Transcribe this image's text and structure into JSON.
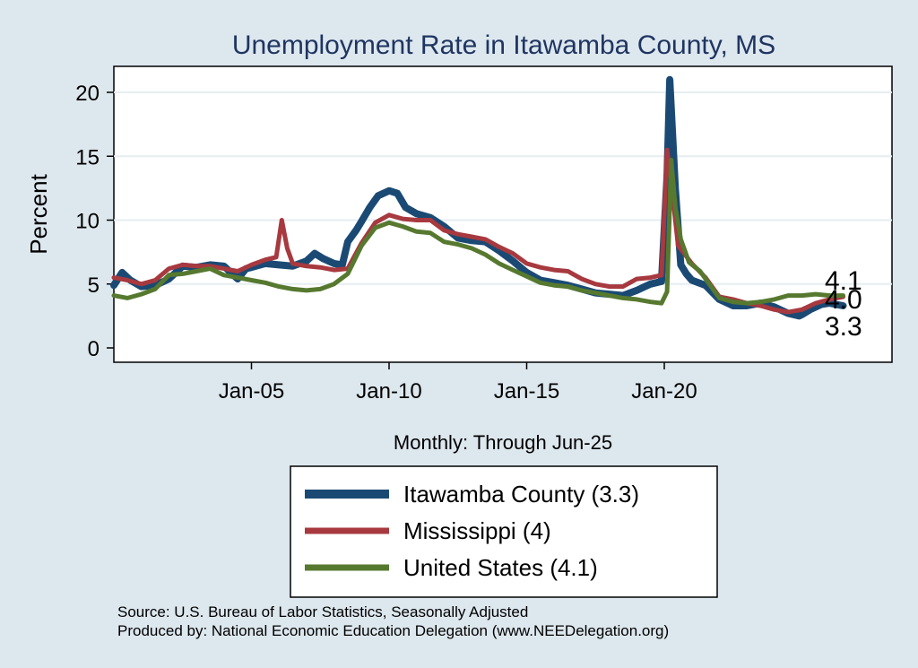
{
  "chart_data": {
    "type": "line",
    "title": "Unemployment Rate in Itawamba  County, MS",
    "ylabel": "Percent",
    "xlabel": "Monthly: Through Jun-25",
    "ylim": [
      0,
      22
    ],
    "yticks": [
      0,
      5,
      10,
      15,
      20
    ],
    "xticks": [
      {
        "label": "Jan-05",
        "value": 2005.0
      },
      {
        "label": "Jan-10",
        "value": 2010.0
      },
      {
        "label": "Jan-15",
        "value": 2015.0
      },
      {
        "label": "Jan-20",
        "value": 2020.0
      }
    ],
    "xlim": [
      2000.0,
      2027.5
    ],
    "grid": true,
    "legend_position": "bottom",
    "end_labels": [
      "4.1",
      "4.0",
      "3.3"
    ],
    "series": [
      {
        "name": "Itawamba  County (3.3)",
        "color": "#1a4a74",
        "points": [
          [
            2000.0,
            4.9
          ],
          [
            2000.3,
            5.9
          ],
          [
            2000.6,
            5.3
          ],
          [
            2001.0,
            4.8
          ],
          [
            2001.5,
            4.9
          ],
          [
            2002.0,
            5.4
          ],
          [
            2002.5,
            6.4
          ],
          [
            2003.0,
            6.3
          ],
          [
            2003.5,
            6.5
          ],
          [
            2004.0,
            6.4
          ],
          [
            2004.5,
            5.4
          ],
          [
            2004.8,
            6.2
          ],
          [
            2005.0,
            6.3
          ],
          [
            2005.5,
            6.6
          ],
          [
            2006.0,
            6.5
          ],
          [
            2006.5,
            6.4
          ],
          [
            2007.0,
            6.8
          ],
          [
            2007.3,
            7.4
          ],
          [
            2007.6,
            7.0
          ],
          [
            2008.0,
            6.6
          ],
          [
            2008.3,
            6.5
          ],
          [
            2008.5,
            8.3
          ],
          [
            2008.8,
            9.2
          ],
          [
            2009.0,
            9.9
          ],
          [
            2009.3,
            11.0
          ],
          [
            2009.6,
            11.9
          ],
          [
            2010.0,
            12.3
          ],
          [
            2010.3,
            12.1
          ],
          [
            2010.6,
            11.0
          ],
          [
            2011.0,
            10.5
          ],
          [
            2011.5,
            10.2
          ],
          [
            2012.0,
            9.5
          ],
          [
            2012.5,
            8.6
          ],
          [
            2013.0,
            8.4
          ],
          [
            2013.5,
            8.3
          ],
          [
            2014.0,
            7.6
          ],
          [
            2014.5,
            6.8
          ],
          [
            2015.0,
            5.9
          ],
          [
            2015.5,
            5.3
          ],
          [
            2016.0,
            5.1
          ],
          [
            2016.5,
            4.9
          ],
          [
            2017.0,
            4.6
          ],
          [
            2017.5,
            4.3
          ],
          [
            2018.0,
            4.2
          ],
          [
            2018.5,
            4.1
          ],
          [
            2019.0,
            4.5
          ],
          [
            2019.5,
            5.0
          ],
          [
            2019.9,
            5.2
          ],
          [
            2020.1,
            13.5
          ],
          [
            2020.2,
            21.0
          ],
          [
            2020.4,
            12.5
          ],
          [
            2020.6,
            6.5
          ],
          [
            2020.8,
            5.8
          ],
          [
            2021.0,
            5.3
          ],
          [
            2021.5,
            4.9
          ],
          [
            2022.0,
            3.8
          ],
          [
            2022.5,
            3.3
          ],
          [
            2023.0,
            3.3
          ],
          [
            2023.5,
            3.5
          ],
          [
            2024.0,
            3.2
          ],
          [
            2024.5,
            2.7
          ],
          [
            2024.9,
            2.5
          ],
          [
            2025.0,
            2.6
          ],
          [
            2025.3,
            3.0
          ],
          [
            2025.7,
            3.4
          ],
          [
            2026.0,
            3.5
          ],
          [
            2026.5,
            3.3
          ]
        ]
      },
      {
        "name": "Mississippi (4)",
        "color": "#a7393f",
        "points": [
          [
            2000.0,
            5.5
          ],
          [
            2000.5,
            5.3
          ],
          [
            2001.0,
            5.0
          ],
          [
            2001.5,
            5.3
          ],
          [
            2002.0,
            6.2
          ],
          [
            2002.5,
            6.5
          ],
          [
            2003.0,
            6.4
          ],
          [
            2003.5,
            6.4
          ],
          [
            2004.0,
            6.2
          ],
          [
            2004.5,
            6.0
          ],
          [
            2005.0,
            6.5
          ],
          [
            2005.5,
            6.9
          ],
          [
            2005.9,
            7.1
          ],
          [
            2006.1,
            10.0
          ],
          [
            2006.3,
            7.8
          ],
          [
            2006.5,
            6.6
          ],
          [
            2007.0,
            6.4
          ],
          [
            2007.5,
            6.3
          ],
          [
            2008.0,
            6.1
          ],
          [
            2008.5,
            6.2
          ],
          [
            2009.0,
            8.2
          ],
          [
            2009.5,
            9.8
          ],
          [
            2010.0,
            10.4
          ],
          [
            2010.5,
            10.1
          ],
          [
            2011.0,
            10.0
          ],
          [
            2011.5,
            10.0
          ],
          [
            2012.0,
            9.2
          ],
          [
            2012.5,
            8.9
          ],
          [
            2013.0,
            8.7
          ],
          [
            2013.5,
            8.5
          ],
          [
            2014.0,
            7.9
          ],
          [
            2014.5,
            7.4
          ],
          [
            2015.0,
            6.6
          ],
          [
            2015.5,
            6.3
          ],
          [
            2016.0,
            6.1
          ],
          [
            2016.5,
            6.0
          ],
          [
            2017.0,
            5.4
          ],
          [
            2017.5,
            5.0
          ],
          [
            2018.0,
            4.8
          ],
          [
            2018.5,
            4.8
          ],
          [
            2019.0,
            5.4
          ],
          [
            2019.5,
            5.5
          ],
          [
            2019.9,
            5.7
          ],
          [
            2020.1,
            15.5
          ],
          [
            2020.3,
            12.0
          ],
          [
            2020.5,
            8.0
          ],
          [
            2021.0,
            6.6
          ],
          [
            2021.5,
            5.5
          ],
          [
            2022.0,
            4.0
          ],
          [
            2022.5,
            3.8
          ],
          [
            2023.0,
            3.5
          ],
          [
            2023.5,
            3.3
          ],
          [
            2024.0,
            3.0
          ],
          [
            2024.5,
            2.8
          ],
          [
            2025.0,
            3.0
          ],
          [
            2025.5,
            3.5
          ],
          [
            2026.0,
            3.8
          ],
          [
            2026.5,
            4.0
          ]
        ]
      },
      {
        "name": "United States (4.1)",
        "color": "#56792f",
        "points": [
          [
            2000.0,
            4.1
          ],
          [
            2000.5,
            3.9
          ],
          [
            2001.0,
            4.2
          ],
          [
            2001.5,
            4.6
          ],
          [
            2002.0,
            5.7
          ],
          [
            2002.5,
            5.8
          ],
          [
            2003.0,
            6.0
          ],
          [
            2003.5,
            6.2
          ],
          [
            2004.0,
            5.7
          ],
          [
            2004.5,
            5.5
          ],
          [
            2005.0,
            5.3
          ],
          [
            2005.5,
            5.1
          ],
          [
            2006.0,
            4.8
          ],
          [
            2006.5,
            4.6
          ],
          [
            2007.0,
            4.5
          ],
          [
            2007.5,
            4.6
          ],
          [
            2008.0,
            5.0
          ],
          [
            2008.5,
            5.8
          ],
          [
            2009.0,
            8.0
          ],
          [
            2009.5,
            9.4
          ],
          [
            2010.0,
            9.8
          ],
          [
            2010.5,
            9.5
          ],
          [
            2011.0,
            9.1
          ],
          [
            2011.5,
            9.0
          ],
          [
            2012.0,
            8.3
          ],
          [
            2012.5,
            8.1
          ],
          [
            2013.0,
            7.8
          ],
          [
            2013.5,
            7.3
          ],
          [
            2014.0,
            6.6
          ],
          [
            2014.5,
            6.1
          ],
          [
            2015.0,
            5.6
          ],
          [
            2015.5,
            5.1
          ],
          [
            2016.0,
            4.9
          ],
          [
            2016.5,
            4.8
          ],
          [
            2017.0,
            4.5
          ],
          [
            2017.5,
            4.3
          ],
          [
            2018.0,
            4.1
          ],
          [
            2018.5,
            3.9
          ],
          [
            2019.0,
            3.8
          ],
          [
            2019.5,
            3.6
          ],
          [
            2019.9,
            3.5
          ],
          [
            2020.1,
            4.4
          ],
          [
            2020.25,
            14.7
          ],
          [
            2020.4,
            11.0
          ],
          [
            2020.6,
            8.5
          ],
          [
            2020.9,
            6.7
          ],
          [
            2021.3,
            6.0
          ],
          [
            2021.7,
            4.8
          ],
          [
            2022.0,
            3.9
          ],
          [
            2022.5,
            3.6
          ],
          [
            2023.0,
            3.5
          ],
          [
            2023.5,
            3.6
          ],
          [
            2024.0,
            3.8
          ],
          [
            2024.5,
            4.1
          ],
          [
            2025.0,
            4.1
          ],
          [
            2025.5,
            4.2
          ],
          [
            2026.0,
            4.1
          ],
          [
            2026.5,
            4.1
          ]
        ]
      }
    ]
  },
  "source_lines": [
    "Source: U.S. Bureau of Labor Statistics, Seasonally Adjusted",
    "Produced by: National Economic Education Delegation (www.NEEDelegation.org)"
  ]
}
